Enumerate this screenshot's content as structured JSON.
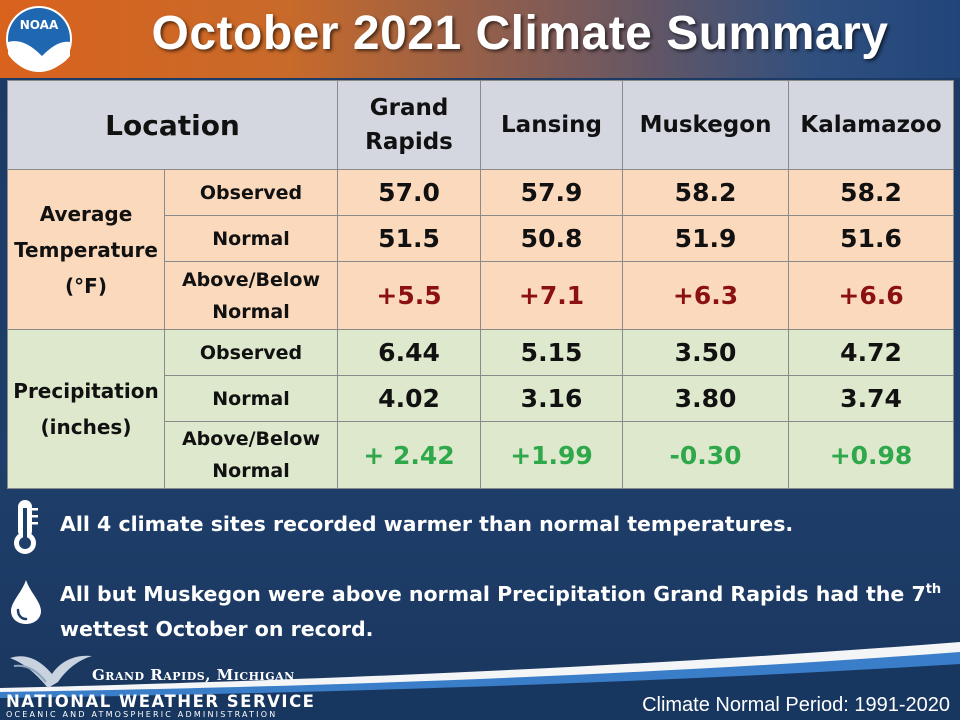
{
  "header": {
    "title": "October 2021 Climate Summary",
    "logo_text": "NOAA"
  },
  "table": {
    "location_label": "Location",
    "locations": [
      "Grand Rapids",
      "Lansing",
      "Muskegon",
      "Kalamazoo"
    ],
    "groups": [
      {
        "label_lines": [
          "Average",
          "Temperature",
          "(°F)"
        ],
        "rows": [
          {
            "label": "Observed",
            "values": [
              "57.0",
              "57.9",
              "58.2",
              "58.2"
            ]
          },
          {
            "label": "Normal",
            "values": [
              "51.5",
              "50.8",
              "51.9",
              "51.6"
            ]
          },
          {
            "label_lines": [
              "Above/Below",
              "Normal"
            ],
            "values": [
              "+5.5",
              "+7.1",
              "+6.3",
              "+6.6"
            ]
          }
        ]
      },
      {
        "label_lines": [
          "Precipitation",
          "(inches)"
        ],
        "rows": [
          {
            "label": "Observed",
            "values": [
              "6.44",
              "5.15",
              "3.50",
              "4.72"
            ]
          },
          {
            "label": "Normal",
            "values": [
              "4.02",
              "3.16",
              "3.80",
              "3.74"
            ]
          },
          {
            "label_lines": [
              "Above/Below",
              "Normal"
            ],
            "values": [
              "+ 2.42",
              "+1.99",
              "-0.30",
              "+0.98"
            ]
          }
        ]
      }
    ]
  },
  "notes": {
    "temperature": "All 4 climate sites recorded warmer than normal temperatures.",
    "precipitation_part1": "All but Muskegon were above normal Precipitation Grand Rapids had the 7",
    "precipitation_sup": "th",
    "precipitation_part2": "wettest October on record."
  },
  "footer": {
    "office": "Grand Rapids, Michigan",
    "agency": "NATIONAL WEATHER SERVICE",
    "parent": "OCEANIC AND ATMOSPHERIC ADMINISTRATION",
    "normal_period": "Climate Normal Period: 1991-2020"
  },
  "colors": {
    "header_orange": "#d9621d",
    "background_blue": "#1e3f6b",
    "temp_rows": "#fbd9bc",
    "precip_rows": "#dde8cc",
    "header_row": "#d4d7df",
    "anomaly_warm": "#8b1111",
    "anomaly_precip": "#2ea84a"
  }
}
